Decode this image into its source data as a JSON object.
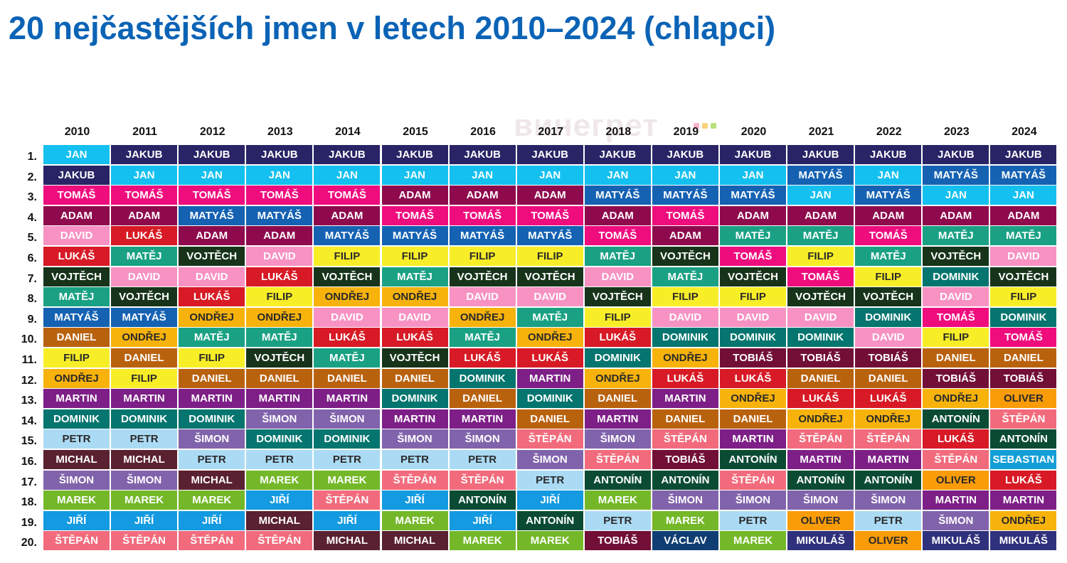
{
  "title": "20 nejčastějších jmen v letech 2010–2024 (chlapci)",
  "watermark": "винегрет",
  "chart_data": {
    "type": "table",
    "years": [
      "2010",
      "2011",
      "2012",
      "2013",
      "2014",
      "2015",
      "2016",
      "2017",
      "2018",
      "2019",
      "2020",
      "2021",
      "2022",
      "2023",
      "2024"
    ],
    "ranks": [
      "1.",
      "2.",
      "3.",
      "4.",
      "5.",
      "6.",
      "7.",
      "8.",
      "9.",
      "10.",
      "11.",
      "12.",
      "13.",
      "14.",
      "15.",
      "16.",
      "17.",
      "18.",
      "19.",
      "20."
    ],
    "columns": [
      [
        "JAN",
        "JAKUB",
        "TOMÁŠ",
        "ADAM",
        "DAVID",
        "LUKÁŠ",
        "VOJTĚCH",
        "MATĚJ",
        "MATYÁŠ",
        "DANIEL",
        "FILIP",
        "ONDŘEJ",
        "MARTIN",
        "DOMINIK",
        "PETR",
        "MICHAL",
        "ŠIMON",
        "MAREK",
        "JIŘÍ",
        "ŠTĚPÁN"
      ],
      [
        "JAKUB",
        "JAN",
        "TOMÁŠ",
        "ADAM",
        "LUKÁŠ",
        "MATĚJ",
        "DAVID",
        "VOJTĚCH",
        "MATYÁŠ",
        "ONDŘEJ",
        "DANIEL",
        "FILIP",
        "MARTIN",
        "DOMINIK",
        "PETR",
        "MICHAL",
        "ŠIMON",
        "MAREK",
        "JIŘÍ",
        "ŠTĚPÁN"
      ],
      [
        "JAKUB",
        "JAN",
        "TOMÁŠ",
        "MATYÁŠ",
        "ADAM",
        "VOJTĚCH",
        "DAVID",
        "LUKÁŠ",
        "ONDŘEJ",
        "MATĚJ",
        "FILIP",
        "DANIEL",
        "MARTIN",
        "DOMINIK",
        "ŠIMON",
        "PETR",
        "MICHAL",
        "MAREK",
        "JIŘÍ",
        "ŠTĚPÁN"
      ],
      [
        "JAKUB",
        "JAN",
        "TOMÁŠ",
        "MATYÁŠ",
        "ADAM",
        "DAVID",
        "LUKÁŠ",
        "FILIP",
        "ONDŘEJ",
        "MATĚJ",
        "VOJTĚCH",
        "DANIEL",
        "MARTIN",
        "ŠIMON",
        "DOMINIK",
        "PETR",
        "MAREK",
        "JIŘÍ",
        "MICHAL",
        "ŠTĚPÁN"
      ],
      [
        "JAKUB",
        "JAN",
        "TOMÁŠ",
        "ADAM",
        "MATYÁŠ",
        "FILIP",
        "VOJTĚCH",
        "ONDŘEJ",
        "DAVID",
        "LUKÁŠ",
        "MATĚJ",
        "DANIEL",
        "MARTIN",
        "ŠIMON",
        "DOMINIK",
        "PETR",
        "MAREK",
        "ŠTĚPÁN",
        "JIŘÍ",
        "MICHAL"
      ],
      [
        "JAKUB",
        "JAN",
        "ADAM",
        "TOMÁŠ",
        "MATYÁŠ",
        "FILIP",
        "MATĚJ",
        "ONDŘEJ",
        "DAVID",
        "LUKÁŠ",
        "VOJTĚCH",
        "DANIEL",
        "DOMINIK",
        "MARTIN",
        "ŠIMON",
        "PETR",
        "ŠTĚPÁN",
        "JIŘÍ",
        "MAREK",
        "MICHAL"
      ],
      [
        "JAKUB",
        "JAN",
        "ADAM",
        "TOMÁŠ",
        "MATYÁŠ",
        "FILIP",
        "VOJTĚCH",
        "DAVID",
        "ONDŘEJ",
        "MATĚJ",
        "LUKÁŠ",
        "DOMINIK",
        "DANIEL",
        "MARTIN",
        "ŠIMON",
        "PETR",
        "ŠTĚPÁN",
        "ANTONÍN",
        "JIŘÍ",
        "MAREK"
      ],
      [
        "JAKUB",
        "JAN",
        "ADAM",
        "TOMÁŠ",
        "MATYÁŠ",
        "FILIP",
        "VOJTĚCH",
        "DAVID",
        "MATĚJ",
        "ONDŘEJ",
        "LUKÁŠ",
        "MARTIN",
        "DOMINIK",
        "DANIEL",
        "ŠTĚPÁN",
        "ŠIMON",
        "PETR",
        "JIŘÍ",
        "ANTONÍN",
        "MAREK"
      ],
      [
        "JAKUB",
        "JAN",
        "MATYÁŠ",
        "ADAM",
        "TOMÁŠ",
        "MATĚJ",
        "DAVID",
        "VOJTĚCH",
        "FILIP",
        "LUKÁŠ",
        "DOMINIK",
        "ONDŘEJ",
        "DANIEL",
        "MARTIN",
        "ŠIMON",
        "ŠTĚPÁN",
        "ANTONÍN",
        "MAREK",
        "PETR",
        "TOBIÁŠ"
      ],
      [
        "JAKUB",
        "JAN",
        "MATYÁŠ",
        "TOMÁŠ",
        "ADAM",
        "VOJTĚCH",
        "MATĚJ",
        "FILIP",
        "DAVID",
        "DOMINIK",
        "ONDŘEJ",
        "LUKÁŠ",
        "MARTIN",
        "DANIEL",
        "ŠTĚPÁN",
        "TOBIÁŠ",
        "ANTONÍN",
        "ŠIMON",
        "MAREK",
        "VÁCLAV"
      ],
      [
        "JAKUB",
        "JAN",
        "MATYÁŠ",
        "ADAM",
        "MATĚJ",
        "TOMÁŠ",
        "VOJTĚCH",
        "FILIP",
        "DAVID",
        "DOMINIK",
        "TOBIÁŠ",
        "LUKÁŠ",
        "ONDŘEJ",
        "DANIEL",
        "MARTIN",
        "ANTONÍN",
        "ŠTĚPÁN",
        "ŠIMON",
        "PETR",
        "MAREK"
      ],
      [
        "JAKUB",
        "MATYÁŠ",
        "JAN",
        "ADAM",
        "MATĚJ",
        "FILIP",
        "TOMÁŠ",
        "VOJTĚCH",
        "DAVID",
        "DOMINIK",
        "TOBIÁŠ",
        "DANIEL",
        "LUKÁŠ",
        "ONDŘEJ",
        "ŠTĚPÁN",
        "MARTIN",
        "ANTONÍN",
        "ŠIMON",
        "OLIVER",
        "MIKULÁŠ"
      ],
      [
        "JAKUB",
        "JAN",
        "MATYÁŠ",
        "ADAM",
        "TOMÁŠ",
        "MATĚJ",
        "FILIP",
        "VOJTĚCH",
        "DOMINIK",
        "DAVID",
        "TOBIÁŠ",
        "DANIEL",
        "LUKÁŠ",
        "ONDŘEJ",
        "ŠTĚPÁN",
        "MARTIN",
        "ANTONÍN",
        "ŠIMON",
        "PETR",
        "OLIVER"
      ],
      [
        "JAKUB",
        "MATYÁŠ",
        "JAN",
        "ADAM",
        "MATĚJ",
        "VOJTĚCH",
        "DOMINIK",
        "DAVID",
        "TOMÁŠ",
        "FILIP",
        "DANIEL",
        "TOBIÁŠ",
        "ONDŘEJ",
        "ANTONÍN",
        "LUKÁŠ",
        "ŠTĚPÁN",
        "OLIVER",
        "MARTIN",
        "ŠIMON",
        "MIKULÁŠ"
      ],
      [
        "JAKUB",
        "MATYÁŠ",
        "JAN",
        "ADAM",
        "MATĚJ",
        "DAVID",
        "VOJTĚCH",
        "FILIP",
        "DOMINIK",
        "TOMÁŠ",
        "DANIEL",
        "TOBIÁŠ",
        "OLIVER",
        "ŠTĚPÁN",
        "ANTONÍN",
        "SEBASTIAN",
        "LUKÁŠ",
        "MARTIN",
        "ONDŘEJ",
        "MIKULÁŠ"
      ]
    ]
  },
  "name_colors": {
    "JAN": "#14c0ef",
    "JAKUB": "#282466",
    "TOMÁŠ": "#ef0d7e",
    "ADAM": "#8e0a4d",
    "DAVID": "#f792c3",
    "LUKÁŠ": "#d71a25",
    "VOJTĚCH": "#17341a",
    "MATĚJ": "#1aa184",
    "MATYÁŠ": "#1562b3",
    "DANIEL": "#b9620e",
    "FILIP": "#f8ee28",
    "ONDŘEJ": "#f7b30c",
    "MARTIN": "#7d1f87",
    "DOMINIK": "#04756f",
    "PETR": "#abdbf4",
    "MICHAL": "#5a2131",
    "ŠIMON": "#8163ac",
    "MAREK": "#74b829",
    "JIŘÍ": "#139ae0",
    "ŠTĚPÁN": "#f26b7c",
    "ANTONÍN": "#0b4b34",
    "TOBIÁŠ": "#720f36",
    "OLIVER": "#f99c08",
    "MIKULÁŠ": "#30317c",
    "SEBASTIAN": "#139ed7",
    "VÁCLAV": "#103e72"
  },
  "dark_text_names": [
    "FILIP",
    "PETR",
    "ONDŘEJ",
    "OLIVER"
  ],
  "watermark_dot_colors": [
    "#f7b3c8",
    "#f9d27a",
    "#b7e07a"
  ]
}
